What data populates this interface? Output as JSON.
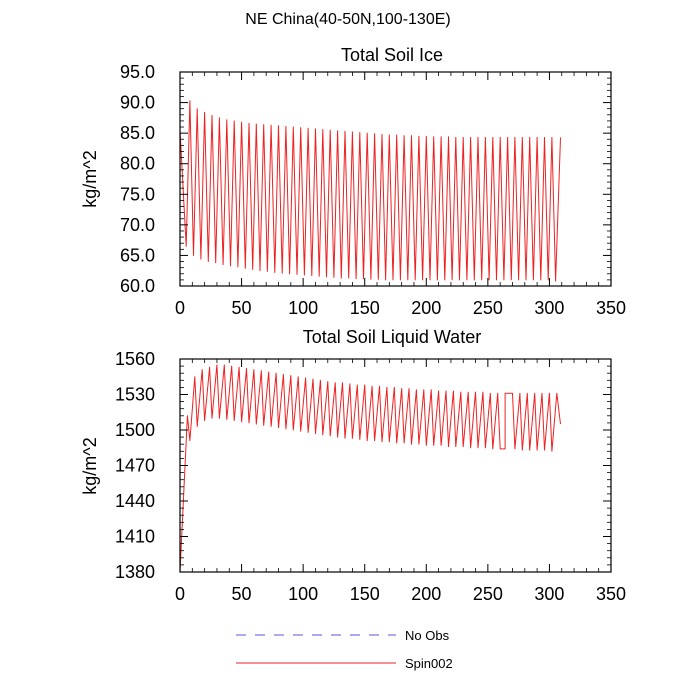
{
  "figure": {
    "title": "NE China(40-50N,100-130E)"
  },
  "legend": {
    "placement": "bottom-center",
    "entries": [
      {
        "name": "No Obs",
        "color": "#5555dd",
        "dash": true
      },
      {
        "name": "Spin002",
        "color": "#ee2222",
        "dash": false
      }
    ]
  },
  "chart_data": [
    {
      "type": "line",
      "title": "Total Soil Ice",
      "xlabel": "",
      "ylabel": "kg/m^2",
      "xlim": [
        0,
        350
      ],
      "ylim": [
        60,
        95
      ],
      "xticks": [
        0,
        50,
        100,
        150,
        200,
        250,
        300,
        350
      ],
      "yticks": [
        60,
        65,
        70,
        75,
        80,
        85,
        90,
        95
      ],
      "ytick_labels": [
        "60.0",
        "65.0",
        "70.0",
        "75.0",
        "80.0",
        "85.0",
        "90.0",
        "95.0"
      ],
      "xticks_minor": [
        10,
        20,
        30,
        40,
        60,
        70,
        80,
        90,
        110,
        120,
        130,
        140,
        160,
        170,
        180,
        190,
        210,
        220,
        230,
        240,
        260,
        270,
        280,
        290,
        310,
        320,
        330,
        340
      ],
      "yticks_minor": [
        61,
        62,
        63,
        64,
        66,
        67,
        68,
        69,
        71,
        72,
        73,
        74,
        76,
        77,
        78,
        79,
        81,
        82,
        83,
        84,
        86,
        87,
        88,
        89,
        91,
        92,
        93,
        94
      ],
      "series": [
        {
          "name": "Spin002",
          "color": "#ee2222",
          "cycle_period": 6,
          "start": {
            "x": 0,
            "y": 85.5
          },
          "end": {
            "x": 309,
            "y": 84.3
          },
          "x_max": [
            8,
            14,
            20,
            26,
            32,
            38,
            44,
            50,
            56,
            62,
            68,
            74,
            80,
            86,
            92,
            98,
            104,
            110,
            116,
            122,
            128,
            134,
            140,
            146,
            152,
            158,
            164,
            170,
            176,
            182,
            188,
            194,
            200,
            206,
            212,
            218,
            224,
            230,
            236,
            242,
            248,
            254,
            260,
            266,
            272,
            278,
            284,
            290,
            296,
            302
          ],
          "y_max": [
            90.3,
            89.0,
            88.4,
            87.9,
            87.5,
            87.2,
            87.0,
            86.8,
            86.6,
            86.5,
            86.4,
            86.3,
            86.2,
            86.1,
            86.0,
            85.9,
            85.8,
            85.7,
            85.6,
            85.5,
            85.4,
            85.3,
            85.2,
            85.1,
            85.0,
            84.9,
            84.8,
            84.7,
            84.7,
            84.6,
            84.6,
            84.5,
            84.5,
            84.4,
            84.4,
            84.4,
            84.3,
            84.3,
            84.3,
            84.3,
            84.3,
            84.3,
            84.3,
            84.3,
            84.3,
            84.3,
            84.3,
            84.3,
            84.3,
            84.3
          ],
          "x_min": [
            5,
            11,
            17,
            23,
            29,
            35,
            41,
            47,
            53,
            59,
            65,
            71,
            77,
            83,
            89,
            95,
            101,
            107,
            113,
            119,
            125,
            131,
            137,
            143,
            149,
            155,
            161,
            167,
            173,
            179,
            185,
            191,
            197,
            203,
            209,
            215,
            221,
            227,
            233,
            239,
            245,
            251,
            257,
            263,
            269,
            275,
            281,
            287,
            293,
            299,
            305
          ],
          "y_min": [
            66.5,
            65.0,
            64.4,
            64.0,
            63.8,
            63.5,
            63.3,
            63.1,
            62.9,
            62.7,
            62.5,
            62.4,
            62.2,
            62.1,
            62.0,
            61.9,
            61.8,
            61.7,
            61.6,
            61.5,
            61.4,
            61.3,
            61.3,
            61.2,
            61.2,
            61.1,
            61.1,
            61.0,
            61.0,
            61.0,
            61.0,
            61.0,
            61.0,
            61.0,
            61.0,
            61.0,
            61.0,
            61.0,
            61.0,
            61.0,
            61.0,
            61.0,
            61.0,
            61.0,
            61.0,
            61.0,
            61.0,
            61.0,
            61.0,
            61.0,
            60.8
          ]
        }
      ]
    },
    {
      "type": "line",
      "title": "Total Soil Liquid Water",
      "xlabel": "",
      "ylabel": "kg/m^2",
      "xlim": [
        0,
        350
      ],
      "ylim": [
        1380,
        1560
      ],
      "xticks": [
        0,
        50,
        100,
        150,
        200,
        250,
        300,
        350
      ],
      "yticks": [
        1380,
        1410,
        1440,
        1470,
        1500,
        1530,
        1560
      ],
      "ytick_labels": [
        "1380",
        "1410",
        "1440",
        "1470",
        "1500",
        "1530",
        "1560"
      ],
      "xticks_minor": [
        10,
        20,
        30,
        40,
        60,
        70,
        80,
        90,
        110,
        120,
        130,
        140,
        160,
        170,
        180,
        190,
        210,
        220,
        230,
        240,
        260,
        270,
        280,
        290,
        310,
        320,
        330,
        340
      ],
      "yticks_minor": [
        1386,
        1392,
        1398,
        1404,
        1416,
        1422,
        1428,
        1434,
        1446,
        1452,
        1458,
        1464,
        1476,
        1482,
        1488,
        1494,
        1506,
        1512,
        1518,
        1524,
        1536,
        1542,
        1548,
        1554
      ],
      "series": [
        {
          "name": "Spin002",
          "color": "#ee2222",
          "cycle_period": 6,
          "start": {
            "x": 0,
            "y": 1380
          },
          "end": {
            "x": 309,
            "y": 1505
          },
          "x_max": [
            6,
            12,
            18,
            24,
            30,
            36,
            42,
            48,
            54,
            60,
            66,
            72,
            78,
            84,
            90,
            96,
            102,
            108,
            114,
            120,
            126,
            132,
            138,
            144,
            150,
            156,
            162,
            168,
            174,
            180,
            186,
            192,
            198,
            204,
            210,
            216,
            222,
            228,
            234,
            240,
            246,
            252,
            258,
            264,
            270,
            276,
            282,
            288,
            294,
            300,
            306
          ],
          "y_max": [
            1512,
            1545,
            1551,
            1553,
            1555,
            1555,
            1554,
            1553,
            1552,
            1551,
            1550,
            1549,
            1548,
            1547,
            1546,
            1545,
            1544,
            1543,
            1542,
            1541,
            1540,
            1540,
            1539,
            1538,
            1538,
            1537,
            1537,
            1536,
            1536,
            1535,
            1535,
            1534,
            1534,
            1534,
            1533,
            1533,
            1533,
            1532,
            1532,
            1532,
            1532,
            1531,
            1531,
            1531,
            1531,
            1531,
            1531,
            1531,
            1531,
            1531,
            1531
          ],
          "x_min": [
            8,
            14,
            20,
            26,
            32,
            38,
            44,
            50,
            56,
            62,
            68,
            74,
            80,
            86,
            92,
            98,
            104,
            110,
            116,
            122,
            128,
            134,
            140,
            146,
            152,
            158,
            164,
            170,
            176,
            182,
            188,
            194,
            200,
            206,
            212,
            218,
            224,
            230,
            236,
            242,
            248,
            254,
            260,
            264,
            272,
            278,
            284,
            290,
            296,
            302
          ],
          "y_min": [
            1491,
            1503,
            1508,
            1510,
            1510,
            1509,
            1508,
            1507,
            1506,
            1505,
            1504,
            1503,
            1502,
            1501,
            1500,
            1499,
            1498,
            1497,
            1496,
            1495,
            1494,
            1493,
            1493,
            1492,
            1491,
            1491,
            1490,
            1490,
            1489,
            1489,
            1488,
            1488,
            1487,
            1487,
            1487,
            1486,
            1486,
            1486,
            1485,
            1485,
            1485,
            1484,
            1484,
            1484,
            1484,
            1483,
            1483,
            1483,
            1483,
            1482
          ]
        }
      ]
    }
  ]
}
